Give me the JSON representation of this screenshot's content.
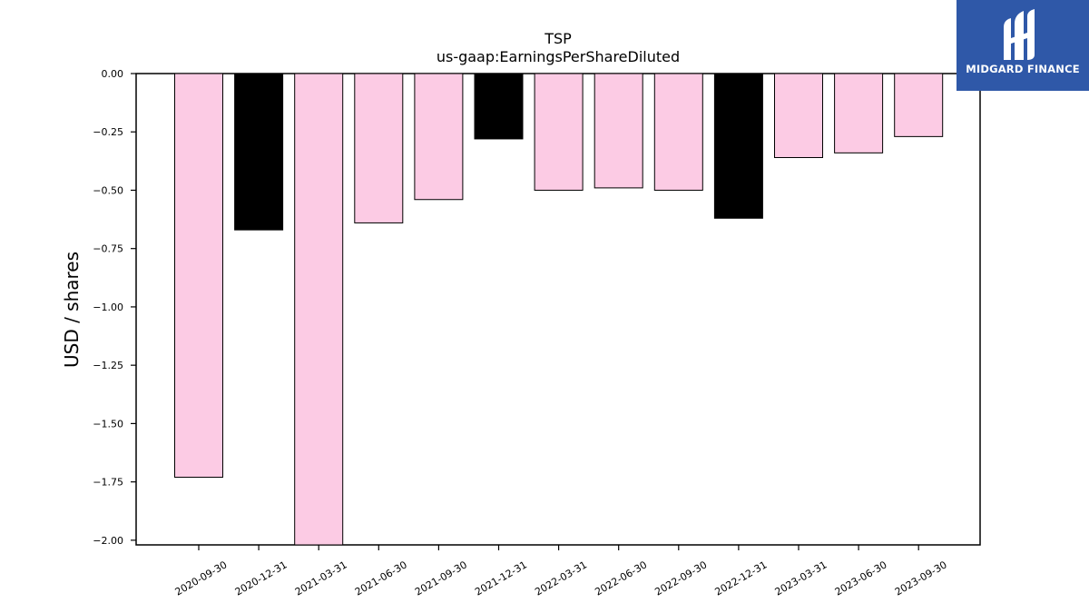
{
  "chart_data": {
    "type": "bar",
    "title": "TSP",
    "subtitle": "us-gaap:EarningsPerShareDiluted",
    "ylabel": "USD / shares",
    "xlabel": "",
    "ylim": [
      -2.02,
      0.0
    ],
    "yticks": [
      "0.00",
      "−0.25",
      "−0.50",
      "−0.75",
      "−1.00",
      "−1.25",
      "−1.50",
      "−1.75",
      "−2.00"
    ],
    "ytick_values": [
      0.0,
      -0.25,
      -0.5,
      -0.75,
      -1.0,
      -1.25,
      -1.5,
      -1.75,
      -2.0
    ],
    "categories": [
      "2020-09-30",
      "2020-12-31",
      "2021-03-31",
      "2021-06-30",
      "2021-09-30",
      "2021-12-31",
      "2022-03-31",
      "2022-06-30",
      "2022-09-30",
      "2022-12-31",
      "2023-03-31",
      "2023-06-30",
      "2023-09-30"
    ],
    "values": [
      -1.73,
      -0.67,
      -2.02,
      -0.64,
      -0.54,
      -0.28,
      -0.5,
      -0.49,
      -0.5,
      -0.62,
      -0.36,
      -0.34,
      -0.27
    ],
    "bar_colors": [
      "#fccbe4",
      "#000000",
      "#fccbe4",
      "#fccbe4",
      "#fccbe4",
      "#000000",
      "#fccbe4",
      "#fccbe4",
      "#fccbe4",
      "#000000",
      "#fccbe4",
      "#fccbe4",
      "#fccbe4"
    ],
    "grid": false
  },
  "logo": {
    "text": "MIDGARD FINANCE",
    "background": "#2f58a8",
    "icon": "midgard-logo-icon"
  }
}
